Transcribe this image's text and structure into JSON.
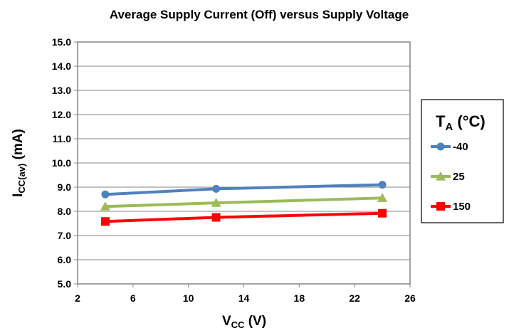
{
  "chart_data": {
    "type": "line",
    "title": "Average Supply Current (Off) versus Supply Voltage",
    "xlabel": {
      "main": "V",
      "sub": "CC",
      "tail": " (V)"
    },
    "ylabel": {
      "main": "I",
      "sub": "CC(av)",
      "tail": " (mA)"
    },
    "xlim": [
      2,
      26
    ],
    "ylim": [
      5.0,
      15.0
    ],
    "x_ticks": [
      "2",
      "6",
      "10",
      "14",
      "18",
      "22",
      "26"
    ],
    "y_ticks": [
      "5.0",
      "6.0",
      "7.0",
      "8.0",
      "9.0",
      "10.0",
      "11.0",
      "12.0",
      "13.0",
      "14.0",
      "15.0"
    ],
    "grid": "horizontal",
    "legend": {
      "title_main": "T",
      "title_sub": "A",
      "title_tail": " (°C)",
      "placement": "right"
    },
    "x": [
      4,
      12,
      24
    ],
    "series": [
      {
        "name": "-40",
        "values": [
          8.7,
          8.93,
          9.1
        ],
        "color": "#4f81bd",
        "marker": "circle"
      },
      {
        "name": "25",
        "values": [
          8.2,
          8.35,
          8.55
        ],
        "color": "#9bbb59",
        "marker": "triangle"
      },
      {
        "name": "150",
        "values": [
          7.58,
          7.75,
          7.92
        ],
        "color": "#ff0000",
        "marker": "square"
      }
    ]
  }
}
